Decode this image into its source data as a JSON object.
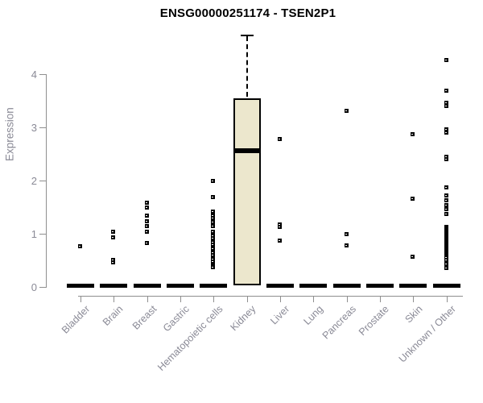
{
  "chart_data": {
    "type": "boxplot",
    "title": "ENSG00000251174 - TSEN2P1",
    "ylabel": "Expression",
    "xlabel": "",
    "ylim": [
      0,
      4
    ],
    "yticks": [
      0,
      1,
      2,
      3,
      4
    ],
    "grid": false,
    "legend": "none",
    "categories": [
      "Bladder",
      "Brain",
      "Breast",
      "Gastric",
      "Hematopoietic cells",
      "Kidney",
      "Liver",
      "Lung",
      "Pancreas",
      "Prostate",
      "Skin",
      "Unknown / Other"
    ],
    "colors": {
      "box_fill": "#ece7cd",
      "box_border": "#000000",
      "point": "#000000",
      "axis": "#8f8f8f",
      "axis_text": "#8a8a96",
      "title_text": "#000000"
    },
    "series": [
      {
        "category": "Bladder",
        "baseline_dash": 0,
        "points": [
          0.76
        ]
      },
      {
        "category": "Brain",
        "baseline_dash": 0,
        "points": [
          1.03,
          0.92,
          0.5,
          0.45
        ]
      },
      {
        "category": "Breast",
        "baseline_dash": 0,
        "points": [
          1.58,
          1.48,
          1.33,
          1.23,
          1.14,
          1.03,
          0.82
        ]
      },
      {
        "category": "Gastric",
        "baseline_dash": 0,
        "points": []
      },
      {
        "category": "Hematopoietic cells",
        "baseline_dash": 0,
        "points": [
          1.98,
          1.68,
          1.41,
          1.37,
          1.33,
          1.29,
          1.25,
          1.21,
          1.17,
          1.13,
          1.03,
          0.99,
          0.95,
          0.91,
          0.87,
          0.83,
          0.79,
          0.75,
          0.71,
          0.67,
          0.63,
          0.59,
          0.55,
          0.51,
          0.47,
          0.43,
          0.39,
          0.36
        ]
      },
      {
        "category": "Kidney",
        "baseline_dash": null,
        "points": []
      },
      {
        "category": "Liver",
        "baseline_dash": 0,
        "points": [
          2.77,
          1.17,
          1.12,
          0.87
        ]
      },
      {
        "category": "Lung",
        "baseline_dash": 0,
        "points": []
      },
      {
        "category": "Pancreas",
        "baseline_dash": 0,
        "points": [
          3.3,
          0.98,
          0.77
        ]
      },
      {
        "category": "Prostate",
        "baseline_dash": 0,
        "points": []
      },
      {
        "category": "Skin",
        "baseline_dash": 0,
        "points": [
          2.86,
          1.65,
          0.56
        ]
      },
      {
        "category": "Unknown / Other",
        "baseline_dash": 0,
        "points": [
          4.26,
          3.68,
          3.46,
          3.39,
          2.95,
          2.89,
          2.44,
          2.4,
          1.86,
          1.71,
          1.62,
          1.53,
          1.45,
          1.36,
          1.12,
          1.09,
          1.06,
          1.03,
          1.0,
          0.97,
          0.94,
          0.91,
          0.88,
          0.85,
          0.82,
          0.79,
          0.76,
          0.73,
          0.7,
          0.67,
          0.64,
          0.61,
          0.58,
          0.55,
          0.5,
          0.43,
          0.35
        ]
      }
    ],
    "boxes": [
      {
        "category": "Kidney",
        "q1": 0.03,
        "median": 2.56,
        "q3": 3.55,
        "whisker_high": 4.74,
        "whisker_low": null,
        "fill": "#ece7cd"
      }
    ]
  }
}
